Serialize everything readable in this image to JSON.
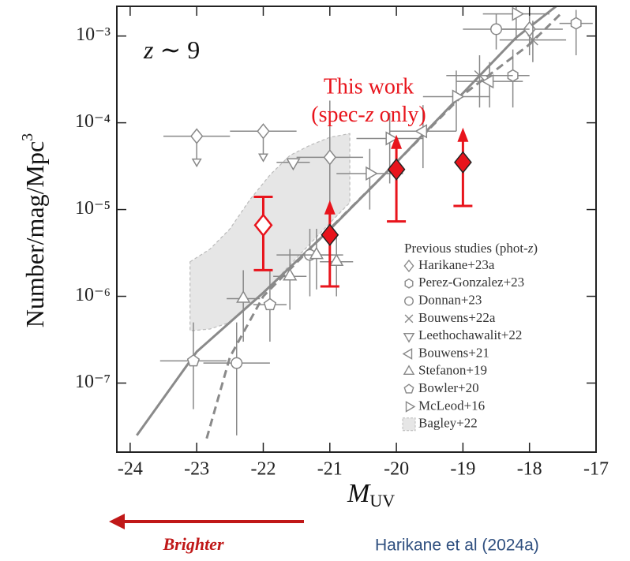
{
  "chart_data": {
    "type": "scatter",
    "xlabel": {
      "main": "M",
      "sub": "UV"
    },
    "ylabel": {
      "main": "Number/mag/Mpc",
      "sup": "3"
    },
    "annotation": {
      "italic": "z",
      "rest": " ∼ 9"
    },
    "this_work_label": {
      "line1": "This work",
      "line2_a": "(spec-",
      "line2_z": "z",
      "line2_b": " only)"
    },
    "legend_title": {
      "a": "Previous studies (phot-",
      "z": "z",
      "b": ")"
    },
    "xlim": [
      -24.2,
      -17
    ],
    "xticks": [
      -24,
      -23,
      -22,
      -21,
      -20,
      -19,
      -18,
      -17
    ],
    "ylim": [
      1.6e-08,
      0.0022
    ],
    "yscale": "log",
    "yticks": [
      {
        "value": 1e-07,
        "label": "10⁻⁷"
      },
      {
        "value": 1e-06,
        "label": "10⁻⁶"
      },
      {
        "value": 1e-05,
        "label": "10⁻⁵"
      },
      {
        "value": 0.0001,
        "label": "10⁻⁴"
      },
      {
        "value": 0.001,
        "label": "10⁻³"
      }
    ],
    "this_work": {
      "color": "#e8141c",
      "x": [
        -22,
        -21,
        -20,
        -19
      ],
      "values": [
        6.6e-06,
        5.1e-06,
        2.9e-05,
        3.5e-05
      ],
      "lower": [
        2e-06,
        1.3e-06,
        7.3e-06,
        1.1e-05
      ],
      "upper": [
        1.4e-05,
        null,
        null,
        null
      ],
      "filled": [
        false,
        true,
        true,
        true
      ],
      "lower_limit": [
        false,
        true,
        true,
        true
      ]
    },
    "curves": [
      {
        "color": "#8a8a8a",
        "dash": false,
        "x": [
          -23.9,
          -23,
          -22,
          -21,
          -20,
          -19,
          -18.2,
          -17.6
        ],
        "values": [
          2.5e-08,
          2.3e-07,
          1.1e-06,
          5.9e-06,
          3.5e-05,
          0.00022,
          0.00096,
          0.0022
        ]
      },
      {
        "color": "#8a8a8a",
        "dash": true,
        "x": [
          -22.85,
          -22.5,
          -22,
          -21,
          -20,
          -19,
          -18,
          -17.5
        ],
        "values": [
          2.3e-08,
          2e-07,
          1e-06,
          6e-06,
          3.5e-05,
          0.00021,
          0.0008,
          0.0019
        ]
      }
    ],
    "series": [
      {
        "name": "Harikane+23a",
        "marker": "diamond",
        "color": "#888888",
        "x": [
          -23,
          -22,
          -21,
          -18
        ],
        "values": [
          7e-05,
          8e-05,
          4e-05,
          0.0012
        ],
        "lower": [
          null,
          null,
          7e-06,
          0.0006
        ],
        "upper": [
          null,
          null,
          0.00018,
          0.0018
        ],
        "xerr": [
          0.5,
          0.5,
          0.5,
          0.5
        ],
        "upper_limit": [
          true,
          true,
          false,
          false
        ]
      },
      {
        "name": "Perez-Gonzalez+23",
        "marker": "hexagon",
        "color": "#888888",
        "x": [
          -18.25,
          -17.3
        ],
        "values": [
          0.00035,
          0.0014
        ],
        "lower": [
          0.00015,
          0.0006
        ],
        "upper": [
          0.0007,
          0.002
        ],
        "xerr": [
          0.25,
          0.25
        ]
      },
      {
        "name": "Donnan+23",
        "marker": "circle",
        "color": "#888888",
        "x": [
          -22.4,
          -21.3,
          -18.5
        ],
        "values": [
          1.7e-07,
          3e-06,
          0.0012
        ],
        "lower": [
          2.5e-08,
          1e-06,
          0.0007
        ],
        "upper": [
          5e-07,
          6e-06,
          0.0018
        ],
        "xerr": [
          0.5,
          0.5,
          0.5
        ]
      },
      {
        "name": "Bouwens+22a",
        "marker": "cross",
        "color": "#888888",
        "x": [
          -18.75,
          -17.95
        ],
        "values": [
          0.00035,
          0.0009
        ],
        "lower": [
          0.00015,
          0.0005
        ],
        "upper": [
          0.0006,
          0.0015
        ],
        "xerr": [
          0.5,
          0.5
        ]
      },
      {
        "name": "Leethochawalit+22",
        "marker": "tri-down",
        "color": "#888888",
        "x": [
          -21.55
        ],
        "values": [
          3.5e-05
        ],
        "lower": [
          null
        ],
        "upper": [
          null
        ],
        "xerr": [
          0.25
        ]
      },
      {
        "name": "Bouwens+21",
        "marker": "tri-left",
        "color": "#888888",
        "x": [
          -19.6,
          -18.6
        ],
        "values": [
          8e-05,
          0.0003
        ],
        "lower": [
          3e-05,
          0.00015
        ],
        "upper": [
          0.00016,
          0.0005
        ],
        "xerr": [
          0.5,
          0.5
        ]
      },
      {
        "name": "Stefanon+19",
        "marker": "tri-up",
        "color": "#888888",
        "x": [
          -22.3,
          -21.6,
          -21.2,
          -20.9
        ],
        "values": [
          9.4e-07,
          1.7e-06,
          3e-06,
          2.5e-06
        ],
        "lower": [
          3e-07,
          7e-07,
          1.2e-06,
          1e-06
        ],
        "upper": [
          2e-06,
          3.5e-06,
          6e-06,
          5e-06
        ],
        "xerr": [
          0.25,
          0.25,
          0.25,
          0.25
        ]
      },
      {
        "name": "Bowler+20",
        "marker": "pentagon",
        "color": "#888888",
        "x": [
          -23.05,
          -21.9
        ],
        "values": [
          1.8e-07,
          8e-07
        ],
        "lower": [
          5e-08,
          3e-07
        ],
        "upper": [
          5e-07,
          2e-06
        ],
        "xerr": [
          0.5,
          0.25
        ]
      },
      {
        "name": "McLeod+16",
        "marker": "tri-right",
        "color": "#888888",
        "x": [
          -20.4,
          -20.1,
          -19.1,
          -18.2
        ],
        "values": [
          2.6e-05,
          6.6e-05,
          0.0002,
          0.0018
        ],
        "lower": [
          1e-05,
          2e-05,
          8e-05,
          0.0009
        ],
        "upper": [
          5e-05,
          0.00013,
          0.0004,
          0.0022
        ],
        "xerr": [
          0.5,
          0.5,
          0.5,
          0.5
        ]
      }
    ],
    "regions": [
      {
        "name": "Bagley+22",
        "color": "#e6e6e6",
        "x": [
          -23.1,
          -22.8,
          -22.5,
          -22.2,
          -21.9,
          -21.6,
          -21.3,
          -21.0,
          -20.7
        ],
        "upper": [
          2.5e-06,
          3.5e-06,
          6e-06,
          1.3e-05,
          2.5e-05,
          4.2e-05,
          5.5e-05,
          6.8e-05,
          7.5e-05
        ],
        "lower": [
          4e-07,
          4.2e-07,
          5e-07,
          8e-07,
          1.3e-06,
          2.3e-06,
          4e-06,
          7e-06,
          1.2e-05
        ]
      }
    ]
  },
  "footer": {
    "arrow_label": "Brighter",
    "credit": "Harikane et al (2024a)"
  }
}
